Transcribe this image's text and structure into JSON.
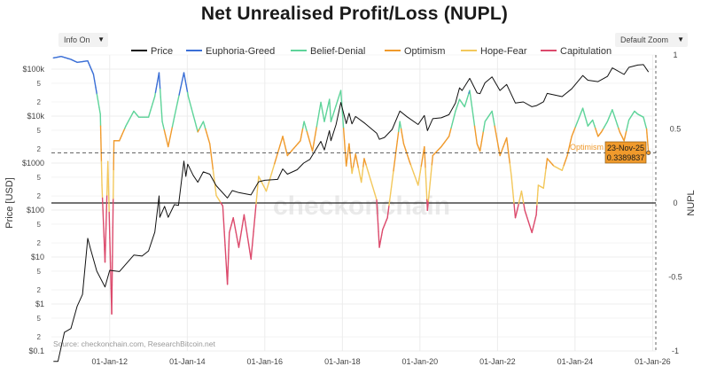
{
  "chart_data": {
    "type": "line",
    "title": "Net Unrealised Profit/Loss (NUPL)",
    "ylabel_left": "Price [USD]",
    "ylabel_right": "NUPL",
    "y_left_scale": "log",
    "y_left_range": [
      0.1,
      200000
    ],
    "y_right_range": [
      -1,
      1
    ],
    "x_range": [
      "2010-07-01",
      "2026-01-31"
    ],
    "x_ticks": [
      "01-Jan-12",
      "01-Jan-14",
      "01-Jan-16",
      "01-Jan-18",
      "01-Jan-20",
      "01-Jan-22",
      "01-Jan-24",
      "01-Jan-26"
    ],
    "y_left_ticks": [
      "$0.1",
      "2",
      "5",
      "$1",
      "2",
      "5",
      "$10",
      "2",
      "5",
      "$100",
      "2",
      "5",
      "$1000",
      "2",
      "5",
      "$10k",
      "2",
      "5",
      "$100k"
    ],
    "y_right_ticks": [
      "-1",
      "-0.5",
      "0",
      "0.5",
      "1"
    ],
    "legend": [
      "Price",
      "Euphoria-Greed",
      "Belief-Denial",
      "Optimism",
      "Hope-Fear",
      "Capitulation"
    ],
    "legend_placement": "top-center",
    "colors": {
      "Price": "#111111",
      "Euphoria-Greed": "#3b6fd6",
      "Belief-Denial": "#5fd49a",
      "Optimism": "#f09a2c",
      "Hope-Fear": "#f3c85c",
      "Capitulation": "#dc4a6c",
      "zero_line": "#222222",
      "grid": "#ececec",
      "crosshair": "#333333",
      "tooltip_bg": "#f09a2c"
    },
    "thresholds": [
      {
        "level": 0.75,
        "label": "Euphoria-Greed"
      },
      {
        "level": 0.5,
        "label": "Belief-Denial"
      },
      {
        "level": 0.25,
        "label": "Optimism"
      },
      {
        "level": 0.0,
        "label": "Hope-Fear"
      }
    ],
    "price_series": {
      "name": "Price",
      "points": [
        [
          "2010-07-20",
          0.06
        ],
        [
          "2010-09-01",
          0.06
        ],
        [
          "2010-11-01",
          0.25
        ],
        [
          "2011-01-01",
          0.3
        ],
        [
          "2011-03-01",
          0.9
        ],
        [
          "2011-04-20",
          1.6
        ],
        [
          "2011-06-08",
          25
        ],
        [
          "2011-07-01",
          16
        ],
        [
          "2011-09-01",
          5
        ],
        [
          "2011-11-18",
          2.3
        ],
        [
          "2012-01-01",
          5.2
        ],
        [
          "2012-04-01",
          4.9
        ],
        [
          "2012-08-15",
          11
        ],
        [
          "2012-11-01",
          10.5
        ],
        [
          "2013-01-01",
          13.5
        ],
        [
          "2013-03-01",
          34
        ],
        [
          "2013-04-10",
          200
        ],
        [
          "2013-04-17",
          70
        ],
        [
          "2013-06-01",
          120
        ],
        [
          "2013-07-05",
          70
        ],
        [
          "2013-09-01",
          130
        ],
        [
          "2013-10-10",
          125
        ],
        [
          "2013-11-30",
          1100
        ],
        [
          "2013-12-18",
          520
        ],
        [
          "2014-01-05",
          950
        ],
        [
          "2014-02-25",
          550
        ],
        [
          "2014-04-10",
          390
        ],
        [
          "2014-06-01",
          650
        ],
        [
          "2014-08-01",
          580
        ],
        [
          "2014-10-01",
          330
        ],
        [
          "2015-01-14",
          180
        ],
        [
          "2015-03-01",
          260
        ],
        [
          "2015-05-01",
          235
        ],
        [
          "2015-08-24",
          210
        ],
        [
          "2015-11-04",
          400
        ],
        [
          "2016-01-01",
          430
        ],
        [
          "2016-05-01",
          450
        ],
        [
          "2016-06-18",
          750
        ],
        [
          "2016-08-01",
          580
        ],
        [
          "2016-11-01",
          720
        ],
        [
          "2017-01-01",
          1000
        ],
        [
          "2017-03-01",
          1200
        ],
        [
          "2017-06-12",
          2900
        ],
        [
          "2017-07-15",
          1900
        ],
        [
          "2017-09-01",
          4900
        ],
        [
          "2017-09-15",
          3000
        ],
        [
          "2017-11-01",
          6500
        ],
        [
          "2017-12-17",
          19500
        ],
        [
          "2018-02-06",
          6900
        ],
        [
          "2018-03-05",
          11500
        ],
        [
          "2018-04-01",
          6800
        ],
        [
          "2018-05-05",
          9800
        ],
        [
          "2018-08-01",
          7000
        ],
        [
          "2018-11-20",
          4300
        ],
        [
          "2018-12-15",
          3200
        ],
        [
          "2019-02-01",
          3500
        ],
        [
          "2019-04-15",
          5200
        ],
        [
          "2019-06-26",
          12800
        ],
        [
          "2019-09-01",
          9700
        ],
        [
          "2019-12-15",
          6600
        ],
        [
          "2020-02-12",
          10300
        ],
        [
          "2020-03-12",
          4900
        ],
        [
          "2020-05-01",
          8800
        ],
        [
          "2020-07-20",
          9200
        ],
        [
          "2020-10-01",
          10700
        ],
        [
          "2020-12-01",
          19000
        ],
        [
          "2021-01-08",
          40000
        ],
        [
          "2021-02-01",
          35000
        ],
        [
          "2021-04-14",
          63500
        ],
        [
          "2021-06-22",
          31000
        ],
        [
          "2021-07-20",
          30000
        ],
        [
          "2021-09-05",
          51000
        ],
        [
          "2021-11-10",
          68000
        ],
        [
          "2022-01-24",
          35000
        ],
        [
          "2022-03-28",
          47000
        ],
        [
          "2022-06-18",
          19000
        ],
        [
          "2022-09-01",
          20000
        ],
        [
          "2022-11-21",
          15800
        ],
        [
          "2023-01-01",
          16600
        ],
        [
          "2023-03-10",
          20200
        ],
        [
          "2023-04-14",
          30400
        ],
        [
          "2023-09-01",
          26000
        ],
        [
          "2023-12-01",
          38000
        ],
        [
          "2024-03-14",
          73000
        ],
        [
          "2024-05-01",
          58000
        ],
        [
          "2024-08-05",
          54000
        ],
        [
          "2024-11-01",
          70000
        ],
        [
          "2024-12-17",
          106000
        ],
        [
          "2025-04-07",
          77000
        ],
        [
          "2025-05-22",
          109000
        ],
        [
          "2025-08-14",
          122000
        ],
        [
          "2025-10-06",
          124500
        ],
        [
          "2025-11-23",
          87000
        ]
      ]
    },
    "nupl_series": {
      "name": "NUPL",
      "points": [
        [
          "2010-07-20",
          0.98
        ],
        [
          "2010-10-01",
          0.99
        ],
        [
          "2011-01-01",
          0.97
        ],
        [
          "2011-03-01",
          0.95
        ],
        [
          "2011-06-08",
          0.96
        ],
        [
          "2011-08-01",
          0.87
        ],
        [
          "2011-10-05",
          0.6
        ],
        [
          "2011-10-20",
          0.12
        ],
        [
          "2011-11-18",
          -0.4
        ],
        [
          "2011-12-15",
          0.28
        ],
        [
          "2012-01-20",
          -0.75
        ],
        [
          "2012-02-10",
          0.42
        ],
        [
          "2012-04-01",
          0.42
        ],
        [
          "2012-06-01",
          0.52
        ],
        [
          "2012-08-15",
          0.62
        ],
        [
          "2012-10-01",
          0.58
        ],
        [
          "2013-01-01",
          0.58
        ],
        [
          "2013-03-01",
          0.72
        ],
        [
          "2013-04-10",
          0.88
        ],
        [
          "2013-05-10",
          0.55
        ],
        [
          "2013-07-05",
          0.38
        ],
        [
          "2013-09-01",
          0.58
        ],
        [
          "2013-11-30",
          0.88
        ],
        [
          "2014-01-10",
          0.72
        ],
        [
          "2014-04-10",
          0.48
        ],
        [
          "2014-06-01",
          0.55
        ],
        [
          "2014-08-01",
          0.4
        ],
        [
          "2014-10-01",
          0.05
        ],
        [
          "2014-12-01",
          -0.02
        ],
        [
          "2015-01-14",
          -0.55
        ],
        [
          "2015-02-01",
          -0.2
        ],
        [
          "2015-03-10",
          -0.1
        ],
        [
          "2015-05-01",
          -0.3
        ],
        [
          "2015-06-20",
          -0.08
        ],
        [
          "2015-08-24",
          -0.38
        ],
        [
          "2015-11-04",
          0.18
        ],
        [
          "2016-01-15",
          0.08
        ],
        [
          "2016-06-18",
          0.45
        ],
        [
          "2016-08-01",
          0.32
        ],
        [
          "2016-12-01",
          0.42
        ],
        [
          "2017-01-05",
          0.55
        ],
        [
          "2017-03-25",
          0.35
        ],
        [
          "2017-06-12",
          0.68
        ],
        [
          "2017-07-15",
          0.55
        ],
        [
          "2017-09-01",
          0.7
        ],
        [
          "2017-09-15",
          0.55
        ],
        [
          "2017-12-17",
          0.76
        ],
        [
          "2018-02-06",
          0.25
        ],
        [
          "2018-03-05",
          0.4
        ],
        [
          "2018-04-01",
          0.2
        ],
        [
          "2018-05-05",
          0.33
        ],
        [
          "2018-06-28",
          0.14
        ],
        [
          "2018-07-25",
          0.3
        ],
        [
          "2018-11-20",
          0.02
        ],
        [
          "2018-12-15",
          -0.3
        ],
        [
          "2019-01-15",
          -0.18
        ],
        [
          "2019-03-01",
          -0.1
        ],
        [
          "2019-04-15",
          0.15
        ],
        [
          "2019-06-26",
          0.55
        ],
        [
          "2019-08-01",
          0.4
        ],
        [
          "2019-09-25",
          0.28
        ],
        [
          "2019-12-15",
          0.12
        ],
        [
          "2020-02-12",
          0.38
        ],
        [
          "2020-03-12",
          -0.05
        ],
        [
          "2020-05-01",
          0.32
        ],
        [
          "2020-07-20",
          0.38
        ],
        [
          "2020-10-01",
          0.45
        ],
        [
          "2020-12-01",
          0.62
        ],
        [
          "2021-01-08",
          0.7
        ],
        [
          "2021-02-25",
          0.65
        ],
        [
          "2021-04-14",
          0.76
        ],
        [
          "2021-06-22",
          0.4
        ],
        [
          "2021-07-20",
          0.35
        ],
        [
          "2021-09-05",
          0.55
        ],
        [
          "2021-11-10",
          0.62
        ],
        [
          "2022-01-24",
          0.32
        ],
        [
          "2022-03-28",
          0.44
        ],
        [
          "2022-05-12",
          0.18
        ],
        [
          "2022-06-18",
          -0.1
        ],
        [
          "2022-07-15",
          -0.02
        ],
        [
          "2022-08-15",
          0.08
        ],
        [
          "2022-09-15",
          -0.05
        ],
        [
          "2022-11-21",
          -0.2
        ],
        [
          "2023-01-01",
          -0.08
        ],
        [
          "2023-01-20",
          0.12
        ],
        [
          "2023-03-10",
          0.1
        ],
        [
          "2023-04-14",
          0.3
        ],
        [
          "2023-06-15",
          0.25
        ],
        [
          "2023-09-01",
          0.22
        ],
        [
          "2023-10-20",
          0.32
        ],
        [
          "2023-12-01",
          0.45
        ],
        [
          "2024-03-14",
          0.64
        ],
        [
          "2024-05-01",
          0.52
        ],
        [
          "2024-06-15",
          0.56
        ],
        [
          "2024-08-05",
          0.45
        ],
        [
          "2024-09-06",
          0.48
        ],
        [
          "2024-11-01",
          0.55
        ],
        [
          "2024-12-17",
          0.63
        ],
        [
          "2025-02-25",
          0.48
        ],
        [
          "2025-04-07",
          0.42
        ],
        [
          "2025-05-22",
          0.56
        ],
        [
          "2025-07-14",
          0.62
        ],
        [
          "2025-08-14",
          0.6
        ],
        [
          "2025-10-06",
          0.58
        ],
        [
          "2025-11-05",
          0.5
        ],
        [
          "2025-11-23",
          0.3389837
        ]
      ]
    },
    "annotation": {
      "label": "Optimism",
      "date_text": "23-Nov-25",
      "value_text": "0.3389837"
    },
    "watermark": "checkonchain",
    "source": "Source: checkonchain.com, ResearchBitcoin.net"
  },
  "ui": {
    "info_dropdown": "Info On",
    "zoom_dropdown": "Default Zoom",
    "dropdown_arrow": "▼"
  }
}
